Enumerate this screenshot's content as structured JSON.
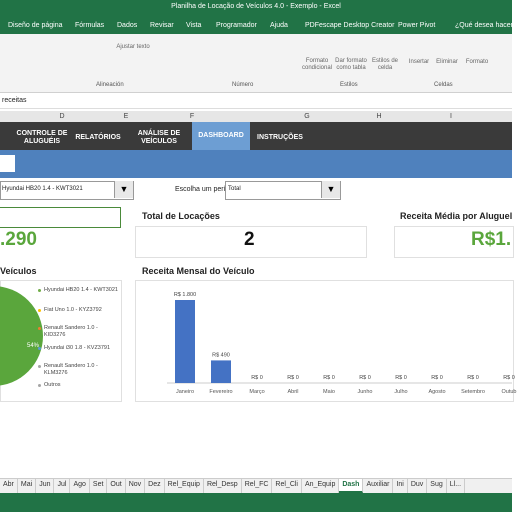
{
  "title_bar": "Planilha de Locação de Veículos 4.0 - Exemplo  -  Excel",
  "ribbon_tabs": [
    "Diseño de página",
    "Fórmulas",
    "Dados",
    "Revisar",
    "Vista",
    "Programador",
    "Ajuda",
    "PDFescape Desktop Creator",
    "Power Pivot",
    "¿Qué desea hacer?"
  ],
  "ribbon_buttons": [
    "Ajustar texto",
    "Formato condicional",
    "Dar formato como tabla",
    "Estilos de celda",
    "Insertar",
    "Eliminar",
    "Formato"
  ],
  "ribbon_groups": [
    "Alineación",
    "Número",
    "Estilos",
    "Celdas"
  ],
  "name_box": "receitas",
  "columns": [
    "D",
    "E",
    "F",
    "G",
    "H",
    "I"
  ],
  "nav": [
    "CONTROLE DE ALUGUÉIS",
    "RELATÓRIOS",
    "ANÁLISE DE VEÍCULOS",
    "DASHBOARD",
    "INSTRUÇÕES"
  ],
  "nav_active": 3,
  "filters": {
    "vehicle": "Hyundai HB20 1.4 - KWT3021",
    "period_label": "Escolha um período:",
    "period": "Total"
  },
  "kpis": [
    {
      "value": ".290"
    },
    {
      "title": "Total de Locações",
      "value": "2"
    },
    {
      "title": "Receita Média por Aluguel",
      "value": "R$1."
    }
  ],
  "pie": {
    "title": "Veículos",
    "label": "54%",
    "legend": [
      "Hyundai HB20 1.4 - KWT3021",
      "Fiat Uno 1.0 - KYZ3792",
      "Renault Sandero 1.0 - KID3276",
      "Hyundai i30 1.8 - KVZ3791",
      "Renault Sandero 1.0 - KLM3276",
      "Outros"
    ],
    "colors": [
      "#70ad47",
      "#ffc000",
      "#ed7d31",
      "#5b9bd5",
      "#a5a5a5",
      "#a5a5a5"
    ]
  },
  "chart_data": {
    "type": "bar",
    "title": "Receita Mensal do Veículo",
    "categories": [
      "Janeiro",
      "Fevereiro",
      "Março",
      "Abril",
      "Maio",
      "Junho",
      "Julho",
      "Agosto",
      "Setembro",
      "Outub"
    ],
    "values": [
      1800,
      490,
      0,
      0,
      0,
      0,
      0,
      0,
      0,
      0
    ],
    "value_labels": [
      "R$ 1.800",
      "R$ 490",
      "R$ 0",
      "R$ 0",
      "R$ 0",
      "R$ 0",
      "R$ 0",
      "R$ 0",
      "R$ 0",
      "R$ 0"
    ],
    "color": "#4472c4"
  },
  "sheet_tabs": [
    "Abr",
    "Mai",
    "Jun",
    "Jul",
    "Ago",
    "Set",
    "Out",
    "Nov",
    "Dez",
    "Rel_Equip",
    "Rel_Desp",
    "Rel_FC",
    "Rel_Cli",
    "An_Equip",
    "Dash",
    "Auxiliar",
    "Ini",
    "Duv",
    "Sug",
    "Ll..."
  ],
  "sheet_active": 14
}
